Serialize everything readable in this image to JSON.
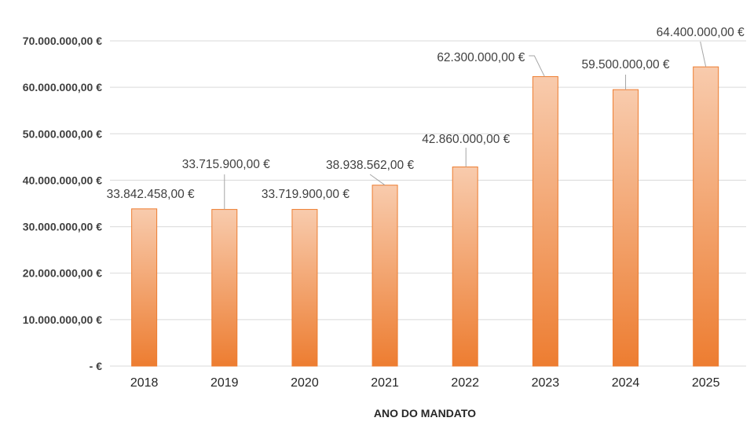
{
  "chart_data": {
    "type": "bar",
    "title": "",
    "xlabel": "ANO DO MANDATO",
    "ylabel": "",
    "categories": [
      "2018",
      "2019",
      "2020",
      "2021",
      "2022",
      "2023",
      "2024",
      "2025"
    ],
    "values": [
      33842458,
      33715900,
      33719900,
      38938562,
      42860000,
      62300000,
      59500000,
      64400000
    ],
    "data_labels": [
      "33.842.458,00 €",
      "33.715.900,00 €",
      "33.719.900,00 €",
      "38.938.562,00 €",
      "42.860.000,00 €",
      "62.300.000,00 €",
      "59.500.000,00 €",
      "64.400.000,00 €"
    ],
    "ylim": [
      0,
      70000000
    ],
    "yticks": [
      0,
      10000000,
      20000000,
      30000000,
      40000000,
      50000000,
      60000000,
      70000000
    ],
    "ytick_labels": [
      "-  €",
      "10.000.000,00 €",
      "20.000.000,00 €",
      "30.000.000,00 €",
      "40.000.000,00 €",
      "50.000.000,00 €",
      "60.000.000,00 €",
      "70.000.000,00 €"
    ],
    "grid": true,
    "legend": "none",
    "colors": {
      "bar_top": "#f8cbad",
      "bar_bottom": "#ed7d31",
      "bar_border": "#ed7d31",
      "grid": "#d9d9d9",
      "leader": "#a6a6a6"
    }
  }
}
